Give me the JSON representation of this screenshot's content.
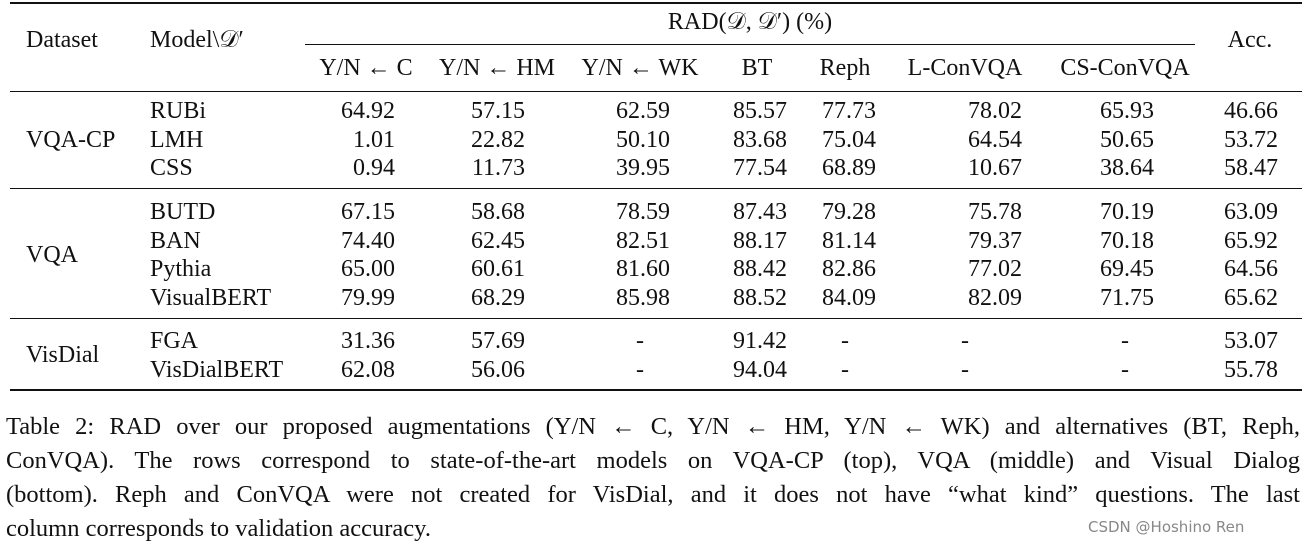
{
  "table": {
    "header": {
      "dataset": "Dataset",
      "model": "Model\\𝒟′",
      "group": "RAD(𝒟, 𝒟′) (%)",
      "columns": [
        "Y/N ← C",
        "Y/N ← HM",
        "Y/N ← WK",
        "BT",
        "Reph",
        "L-ConVQA",
        "CS-ConVQA"
      ],
      "accuracy": "Acc."
    },
    "groups": [
      {
        "dataset": "VQA-CP",
        "rows": [
          {
            "model": "RUBi",
            "values": [
              "64.92",
              "57.15",
              "62.59",
              "85.57",
              "77.73",
              "78.02",
              "65.93"
            ],
            "accuracy": "46.66"
          },
          {
            "model": "LMH",
            "values": [
              "1.01",
              "22.82",
              "50.10",
              "83.68",
              "75.04",
              "64.54",
              "50.65"
            ],
            "accuracy": "53.72"
          },
          {
            "model": "CSS",
            "values": [
              "0.94",
              "11.73",
              "39.95",
              "77.54",
              "68.89",
              "10.67",
              "38.64"
            ],
            "accuracy": "58.47"
          }
        ]
      },
      {
        "dataset": "VQA",
        "rows": [
          {
            "model": "BUTD",
            "values": [
              "67.15",
              "58.68",
              "78.59",
              "87.43",
              "79.28",
              "75.78",
              "70.19"
            ],
            "accuracy": "63.09"
          },
          {
            "model": "BAN",
            "values": [
              "74.40",
              "62.45",
              "82.51",
              "88.17",
              "81.14",
              "79.37",
              "70.18"
            ],
            "accuracy": "65.92"
          },
          {
            "model": "Pythia",
            "values": [
              "65.00",
              "60.61",
              "81.60",
              "88.42",
              "82.86",
              "77.02",
              "69.45"
            ],
            "accuracy": "64.56"
          },
          {
            "model": "VisualBERT",
            "values": [
              "79.99",
              "68.29",
              "85.98",
              "88.52",
              "84.09",
              "82.09",
              "71.75"
            ],
            "accuracy": "65.62"
          }
        ]
      },
      {
        "dataset": "VisDial",
        "rows": [
          {
            "model": "FGA",
            "values": [
              "31.36",
              "57.69",
              "-",
              "91.42",
              "-",
              "-",
              "-"
            ],
            "accuracy": "53.07"
          },
          {
            "model": "VisDialBERT",
            "values": [
              "62.08",
              "56.06",
              "-",
              "94.04",
              "-",
              "-",
              "-"
            ],
            "accuracy": "55.78"
          }
        ]
      }
    ]
  },
  "caption": [
    "Table 2: RAD over our proposed augmentations (Y/N ← C, Y/N ← HM, Y/N ← WK) and alternatives (BT, Reph,",
    "ConVQA). The rows correspond to state-of-the-art models on VQA-CP (top), VQA (middle) and Visual Dialog",
    "(bottom). Reph and ConVQA were not created for VisDial, and it does not have “what kind” questions. The last",
    "column corresponds to validation accuracy."
  ],
  "watermark": "CSDN @Hoshino Ren"
}
